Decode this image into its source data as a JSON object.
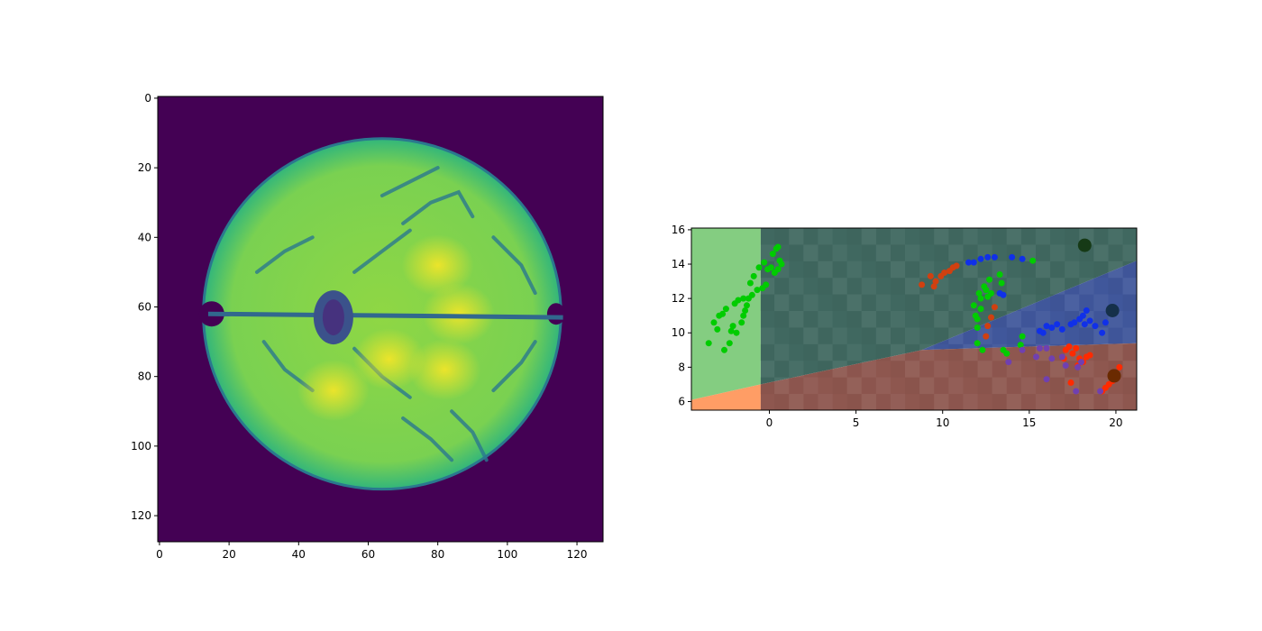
{
  "chart_data": [
    {
      "type": "heatmap",
      "xlim": [
        -0.5,
        127.5
      ],
      "ylim": [
        127.5,
        -0.5
      ],
      "x_ticks": [
        0,
        20,
        40,
        60,
        80,
        100,
        120
      ],
      "y_ticks": [
        0,
        20,
        40,
        60,
        80,
        100,
        120
      ],
      "colormap": "viridis",
      "background_color": "#440154",
      "brain": {
        "center": [
          64,
          62
        ],
        "radius_x": 51,
        "radius_y": 50,
        "midline_y": 62,
        "ventricle_center": [
          50,
          63
        ],
        "bright_regions": [
          [
            80,
            48
          ],
          [
            82,
            78
          ],
          [
            50,
            84
          ],
          [
            66,
            75
          ],
          [
            86,
            62
          ]
        ]
      }
    },
    {
      "type": "scatter",
      "xlim": [
        -4.5,
        21.2
      ],
      "ylim": [
        5.5,
        16.1
      ],
      "x_ticks": [
        0,
        5,
        10,
        15,
        20
      ],
      "y_ticks": [
        6,
        8,
        10,
        12,
        14,
        16
      ],
      "regions": [
        {
          "name": "green",
          "color": "#6fc46b",
          "polygon": [
            [
              -4.5,
              6.1
            ],
            [
              -0.5,
              7.0
            ],
            [
              -0.5,
              16.1
            ],
            [
              -4.5,
              16.1
            ]
          ]
        },
        {
          "name": "orange",
          "color": "#ff8c4a",
          "polygon": [
            [
              -4.5,
              5.5
            ],
            [
              -0.5,
              5.5
            ],
            [
              -0.5,
              7.0
            ],
            [
              -4.5,
              6.1
            ]
          ]
        },
        {
          "name": "teal",
          "color": "#1f4e44",
          "polygon": [
            [
              -0.5,
              7.0
            ],
            [
              8.8,
              9.0
            ],
            [
              21.2,
              14.2
            ],
            [
              21.2,
              16.1
            ],
            [
              -0.5,
              16.1
            ]
          ]
        },
        {
          "name": "blue",
          "color": "#1f3a8a",
          "polygon": [
            [
              8.8,
              9.0
            ],
            [
              21.2,
              9.4
            ],
            [
              21.2,
              14.2
            ]
          ]
        },
        {
          "name": "red",
          "color": "#7a3a30",
          "polygon": [
            [
              -0.5,
              5.5
            ],
            [
              21.2,
              5.5
            ],
            [
              21.2,
              9.4
            ],
            [
              8.8,
              9.0
            ],
            [
              -0.5,
              7.0
            ]
          ]
        }
      ],
      "series": [
        {
          "color": "#00cc00",
          "points": [
            [
              -3.5,
              9.4
            ],
            [
              -3.2,
              10.6
            ],
            [
              -3.0,
              10.2
            ],
            [
              -2.9,
              11.0
            ],
            [
              -2.7,
              11.1
            ],
            [
              -2.6,
              9.0
            ],
            [
              -2.5,
              11.4
            ],
            [
              -2.3,
              9.4
            ],
            [
              -2.1,
              10.4
            ],
            [
              -2.0,
              11.7
            ],
            [
              -1.9,
              10.0
            ],
            [
              -1.8,
              11.9
            ],
            [
              -1.6,
              10.6
            ],
            [
              -1.5,
              11.0
            ],
            [
              -1.4,
              11.3
            ],
            [
              -1.3,
              11.6
            ],
            [
              -1.2,
              12.0
            ],
            [
              -1.0,
              12.2
            ],
            [
              -1.1,
              12.9
            ],
            [
              -0.9,
              13.3
            ],
            [
              -0.7,
              12.5
            ],
            [
              -0.6,
              13.8
            ],
            [
              -0.4,
              12.6
            ],
            [
              -0.3,
              14.1
            ],
            [
              -0.2,
              12.8
            ],
            [
              -0.1,
              13.7
            ],
            [
              0.1,
              13.8
            ],
            [
              0.2,
              14.6
            ],
            [
              0.3,
              13.5
            ],
            [
              0.4,
              14.9
            ],
            [
              0.5,
              13.7
            ],
            [
              0.6,
              14.2
            ],
            [
              0.7,
              14.0
            ],
            [
              0.5,
              15.0
            ],
            [
              -1.5,
              12.0
            ],
            [
              -2.2,
              10.1
            ],
            [
              11.8,
              11.6
            ],
            [
              11.9,
              11.0
            ],
            [
              12.0,
              10.8
            ],
            [
              12.1,
              12.3
            ],
            [
              12.2,
              11.4
            ],
            [
              12.3,
              9.0
            ],
            [
              12.0,
              10.3
            ],
            [
              12.5,
              12.5
            ],
            [
              12.6,
              12.1
            ],
            [
              12.7,
              13.1
            ],
            [
              12.4,
              12.7
            ],
            [
              13.3,
              13.4
            ],
            [
              13.4,
              12.9
            ],
            [
              13.5,
              9.0
            ],
            [
              13.7,
              8.8
            ],
            [
              14.5,
              9.3
            ],
            [
              14.6,
              9.8
            ],
            [
              15.2,
              14.2
            ],
            [
              12.8,
              12.3
            ],
            [
              12.2,
              12.0
            ],
            [
              12.0,
              9.4
            ]
          ]
        },
        {
          "color": "#1030e8",
          "points": [
            [
              11.5,
              14.1
            ],
            [
              11.8,
              14.1
            ],
            [
              12.2,
              14.3
            ],
            [
              12.6,
              14.4
            ],
            [
              13.0,
              14.4
            ],
            [
              13.3,
              12.3
            ],
            [
              13.5,
              12.2
            ],
            [
              14.0,
              14.4
            ],
            [
              14.6,
              14.3
            ],
            [
              15.6,
              10.1
            ],
            [
              15.8,
              10.0
            ],
            [
              16.0,
              10.4
            ],
            [
              16.3,
              10.3
            ],
            [
              16.6,
              10.5
            ],
            [
              16.9,
              10.2
            ],
            [
              17.4,
              10.5
            ],
            [
              17.6,
              10.6
            ],
            [
              17.9,
              10.8
            ],
            [
              18.1,
              11.0
            ],
            [
              18.3,
              11.3
            ],
            [
              18.5,
              10.7
            ],
            [
              18.8,
              10.4
            ],
            [
              19.2,
              10.0
            ],
            [
              19.4,
              10.6
            ],
            [
              18.2,
              10.5
            ]
          ]
        },
        {
          "color": "#d04010",
          "points": [
            [
              8.8,
              12.8
            ],
            [
              9.3,
              13.3
            ],
            [
              9.6,
              13.0
            ],
            [
              9.9,
              13.3
            ],
            [
              10.1,
              13.5
            ],
            [
              10.4,
              13.6
            ],
            [
              10.6,
              13.8
            ],
            [
              10.8,
              13.9
            ],
            [
              9.5,
              12.7
            ],
            [
              12.5,
              9.8
            ],
            [
              12.6,
              10.4
            ],
            [
              12.8,
              10.9
            ],
            [
              13.0,
              11.5
            ]
          ]
        },
        {
          "color": "#ff2a00",
          "points": [
            [
              17.1,
              9.0
            ],
            [
              17.3,
              9.2
            ],
            [
              17.5,
              8.8
            ],
            [
              17.7,
              9.1
            ],
            [
              17.9,
              8.5
            ],
            [
              18.1,
              8.3
            ],
            [
              18.3,
              8.6
            ],
            [
              18.5,
              8.7
            ],
            [
              17.4,
              7.1
            ],
            [
              17.8,
              8.1
            ],
            [
              19.2,
              6.6
            ],
            [
              19.4,
              6.8
            ],
            [
              19.6,
              7.0
            ],
            [
              19.8,
              7.2
            ],
            [
              20.0,
              7.6
            ],
            [
              20.2,
              8.0
            ],
            [
              17.0,
              8.5
            ]
          ]
        },
        {
          "color": "#7040b0",
          "points": [
            [
              14.6,
              9.0
            ],
            [
              15.4,
              8.6
            ],
            [
              15.6,
              9.1
            ],
            [
              16.0,
              9.1
            ],
            [
              16.3,
              8.5
            ],
            [
              16.9,
              8.6
            ],
            [
              17.1,
              8.1
            ],
            [
              17.8,
              8.0
            ],
            [
              18.0,
              8.3
            ],
            [
              16.0,
              7.3
            ],
            [
              17.7,
              6.6
            ],
            [
              19.1,
              6.6
            ],
            [
              13.8,
              8.3
            ]
          ]
        }
      ],
      "centroids": [
        {
          "color": "#163a16",
          "x": 18.2,
          "y": 15.1
        },
        {
          "color": "#15304a",
          "x": 19.8,
          "y": 11.3
        },
        {
          "color": "#6a2a00",
          "x": 19.9,
          "y": 7.5
        }
      ]
    }
  ]
}
